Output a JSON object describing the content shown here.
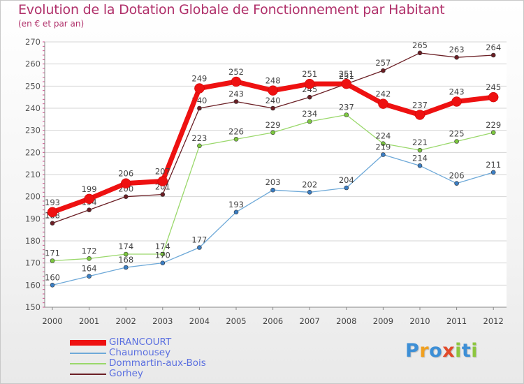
{
  "title": "Evolution de la Dotation Globale de Fonctionnement par Habitant",
  "subtitle": "(en € et par an)",
  "brand": {
    "letters": [
      "P",
      "r",
      "o",
      "x",
      "i",
      "t",
      "i"
    ],
    "colors": [
      "#3d8fd6",
      "#f0a020",
      "#3d8fd6",
      "#e24a2a",
      "#8dc63f",
      "#3d8fd6",
      "#8dc63f"
    ]
  },
  "chart_data": {
    "type": "line",
    "x": [
      "2000",
      "2001",
      "2002",
      "2003",
      "2004",
      "2005",
      "2006",
      "2007",
      "2008",
      "2009",
      "2010",
      "2011",
      "2012"
    ],
    "ylim": [
      150,
      270
    ],
    "yticks": [
      150,
      160,
      170,
      180,
      190,
      200,
      210,
      220,
      230,
      240,
      250,
      260,
      270
    ],
    "xlabel": "",
    "ylabel": "",
    "grid": true,
    "legend_position": "bottom-left",
    "series": [
      {
        "name": "Gorhey",
        "color": "#6b1f25",
        "marker": "#6b1f25",
        "values": [
          188,
          194,
          200,
          201,
          240,
          243,
          240,
          245,
          251,
          257,
          265,
          263,
          264
        ]
      },
      {
        "name": "Dommartin-aux-Bois",
        "color": "#9ad86b",
        "marker": "#7cc73f",
        "values": [
          171,
          172,
          174,
          174,
          223,
          226,
          229,
          234,
          237,
          224,
          221,
          225,
          229
        ]
      },
      {
        "name": "Chaumousey",
        "color": "#6ea9d8",
        "marker": "#3b7ec4",
        "values": [
          160,
          164,
          168,
          170,
          177,
          193,
          203,
          202,
          204,
          219,
          214,
          206,
          211
        ]
      },
      {
        "name": "GIRANCOURT",
        "color": "#ee1111",
        "marker": "#ee1111",
        "values": [
          193,
          199,
          206,
          207,
          249,
          252,
          248,
          251,
          251,
          242,
          237,
          243,
          245
        ]
      }
    ],
    "legend_order": [
      "GIRANCOURT",
      "Chaumousey",
      "Dommartin-aux-Bois",
      "Gorhey"
    ]
  }
}
